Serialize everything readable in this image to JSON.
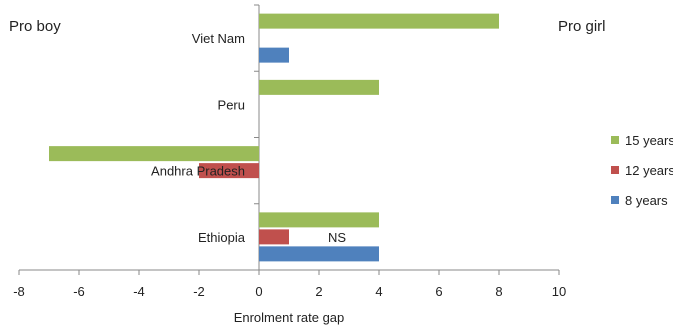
{
  "chart_data": {
    "type": "bar",
    "orientation": "horizontal",
    "categories": [
      "Viet Nam",
      "Peru",
      "Andhra Pradesh",
      "Ethiopia"
    ],
    "series": [
      {
        "name": "15 years",
        "color": "#9bbb59",
        "values": [
          8,
          4,
          -7,
          4
        ]
      },
      {
        "name": "12 years",
        "color": "#c0504d",
        "values": [
          null,
          null,
          -2,
          1
        ]
      },
      {
        "name": "8 years",
        "color": "#4f81bd",
        "values": [
          1,
          null,
          null,
          4
        ]
      }
    ],
    "xlabel": "Enrolment rate gap",
    "xlim": [
      -8,
      10
    ],
    "xticks": [
      -8,
      -6,
      -4,
      -2,
      0,
      2,
      4,
      6,
      8,
      10
    ],
    "side_labels": {
      "left": "Pro boy",
      "right": "Pro girl"
    },
    "annotations": [
      {
        "text": "NS",
        "category": "Ethiopia"
      }
    ],
    "legend_position": "right",
    "grid": false
  }
}
